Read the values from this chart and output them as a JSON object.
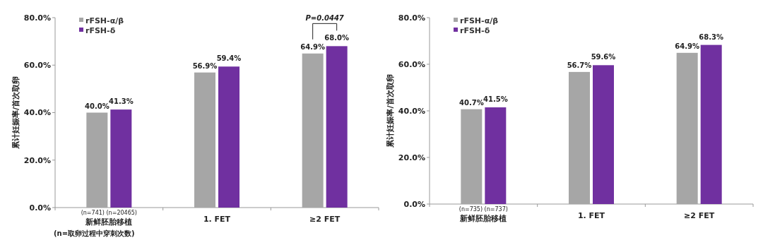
{
  "chart_data": [
    {
      "type": "bar",
      "ylabel": "累计妊娠率/首次取卵",
      "categories": [
        "新鲜胚胎移植",
        "1. FET",
        "≥2 FET"
      ],
      "series": [
        {
          "name": "rFSH-α/β",
          "color": "#a6a6a6",
          "values": [
            40.0,
            56.9,
            64.9
          ],
          "value_labels": [
            "40.0%",
            "56.9%",
            "64.9%"
          ]
        },
        {
          "name": "rFSH-δ",
          "color": "#7030a0",
          "values": [
            41.3,
            59.4,
            68.0
          ],
          "value_labels": [
            "41.3%",
            "59.4%",
            "68.0%"
          ]
        }
      ],
      "ylim": [
        0,
        80
      ],
      "yticks": [
        {
          "value": 0,
          "label": "0.0%"
        },
        {
          "value": 20,
          "label": "20.0%"
        },
        {
          "value": 40,
          "label": "40.0%"
        },
        {
          "value": 60,
          "label": "60.0%"
        },
        {
          "value": 80,
          "label": "80.0%"
        }
      ],
      "legend": "top left",
      "annotations": [
        "(n=741) (n=20465)",
        "P=0.0447",
        "(n=取卵过程中穿刺次数)"
      ]
    },
    {
      "type": "bar",
      "ylabel": "累计妊娠率/首次取卵",
      "categories": [
        "新鲜胚胎移植",
        "1. FET",
        "≥2 FET"
      ],
      "series": [
        {
          "name": "rFSH-α/β",
          "color": "#a6a6a6",
          "values": [
            40.7,
            56.7,
            64.9
          ],
          "value_labels": [
            "40.7%",
            "56.7%",
            "64.9%"
          ]
        },
        {
          "name": "rFSH-δ",
          "color": "#7030a0",
          "values": [
            41.5,
            59.6,
            68.3
          ],
          "value_labels": [
            "41.5%",
            "59.6%",
            "68.3%"
          ]
        }
      ],
      "ylim": [
        0,
        80
      ],
      "yticks": [
        {
          "value": 0,
          "label": "0.0%"
        },
        {
          "value": 20,
          "label": "20.0%"
        },
        {
          "value": 40,
          "label": "40.0%"
        },
        {
          "value": 60,
          "label": "60.0%"
        },
        {
          "value": 80,
          "label": "80.0%"
        }
      ],
      "legend": "top left",
      "annotations": [
        "(n=735) (n=737)"
      ]
    }
  ]
}
